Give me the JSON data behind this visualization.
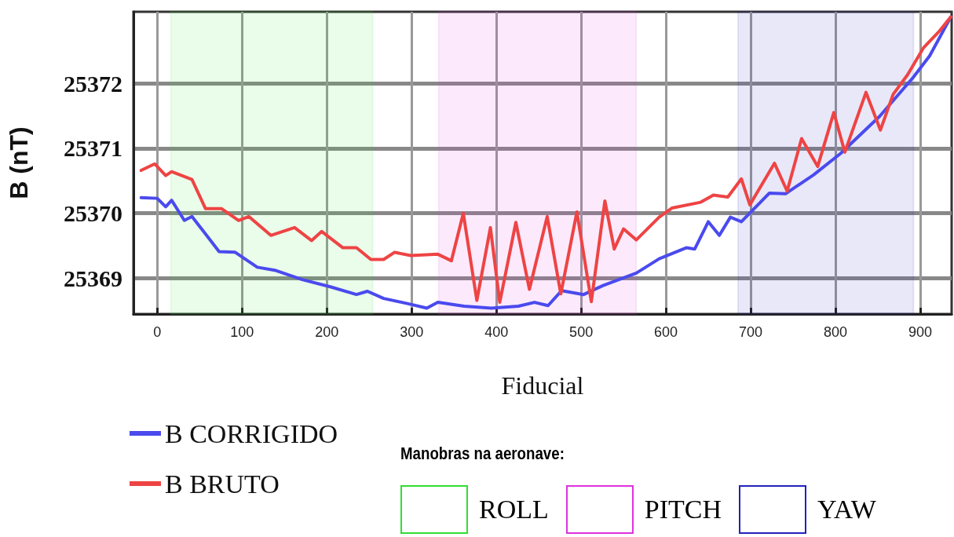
{
  "chart_data": {
    "type": "line",
    "xlabel": "Fiducial",
    "ylabel": "B (nT)",
    "xlim": [
      -28,
      937
    ],
    "xticks": [
      0,
      100,
      200,
      300,
      400,
      500,
      600,
      700,
      800,
      900
    ],
    "ylim": [
      25368.45,
      25373.1
    ],
    "yticks": [
      25369,
      25370,
      25371,
      25372
    ],
    "grid": true,
    "legend": "bottom left",
    "line_style": "solid",
    "marker": "none",
    "series": [
      {
        "name": "B CORRIGIDO",
        "color": "#4a4aee",
        "x": [
          -19,
          0,
          10,
          17,
          32,
          41,
          73,
          92,
          118,
          140,
          171,
          204,
          235,
          248,
          267,
          299,
          318,
          331,
          362,
          394,
          426,
          445,
          461,
          477,
          503,
          526,
          565,
          592,
          624,
          634,
          650,
          663,
          676,
          689,
          722,
          741,
          774,
          806,
          852,
          891,
          911,
          936
        ],
        "values": [
          25370.24,
          25370.23,
          25370.1,
          25370.2,
          25369.89,
          25369.95,
          25369.41,
          25369.4,
          25369.17,
          25369.12,
          25368.98,
          25368.87,
          25368.75,
          25368.8,
          25368.69,
          25368.6,
          25368.54,
          25368.63,
          25368.57,
          25368.54,
          25368.57,
          25368.63,
          25368.58,
          25368.81,
          25368.75,
          25368.89,
          25369.08,
          25369.3,
          25369.47,
          25369.45,
          25369.87,
          25369.66,
          25369.94,
          25369.87,
          25370.31,
          25370.3,
          25370.59,
          25370.92,
          25371.49,
          25372.08,
          25372.42,
          25373.02
        ]
      },
      {
        "name": "B BRUTO",
        "color": "#ee4444",
        "x": [
          -19,
          -3,
          10,
          17,
          41,
          57,
          76,
          96,
          108,
          134,
          162,
          182,
          194,
          219,
          235,
          252,
          267,
          280,
          299,
          331,
          347,
          361,
          377,
          393,
          404,
          423,
          439,
          460,
          476,
          495,
          512,
          528,
          539,
          550,
          565,
          592,
          607,
          641,
          656,
          673,
          689,
          699,
          728,
          743,
          760,
          779,
          798,
          811,
          836,
          853,
          868,
          885,
          904,
          923,
          936
        ],
        "values": [
          25370.66,
          25370.76,
          25370.58,
          25370.64,
          25370.52,
          25370.07,
          25370.07,
          25369.89,
          25369.95,
          25369.66,
          25369.78,
          25369.58,
          25369.72,
          25369.47,
          25369.47,
          25369.29,
          25369.29,
          25369.4,
          25369.35,
          25369.37,
          25369.27,
          25370.0,
          25368.66,
          25369.78,
          25368.63,
          25369.86,
          25368.83,
          25369.95,
          25368.76,
          25370.02,
          25368.64,
          25370.19,
          25369.45,
          25369.76,
          25369.59,
          25369.94,
          25370.08,
          25370.17,
          25370.28,
          25370.25,
          25370.53,
          25370.13,
          25370.77,
          25370.34,
          25371.15,
          25370.72,
          25371.55,
          25370.94,
          25371.86,
          25371.28,
          25371.83,
          25372.13,
          25372.55,
          25372.81,
          25373.02
        ]
      }
    ],
    "bands": [
      {
        "axis": "x",
        "from": 16,
        "to": 254,
        "label": "ROLL",
        "color": "#33dd33"
      },
      {
        "axis": "x",
        "from": 332,
        "to": 565,
        "label": "PITCH",
        "color": "#dd33dd"
      },
      {
        "axis": "x",
        "from": 685,
        "to": 892,
        "label": "YAW",
        "color": "#2222bb"
      }
    ],
    "annotations": [
      "Manobras na aeronave:"
    ]
  }
}
